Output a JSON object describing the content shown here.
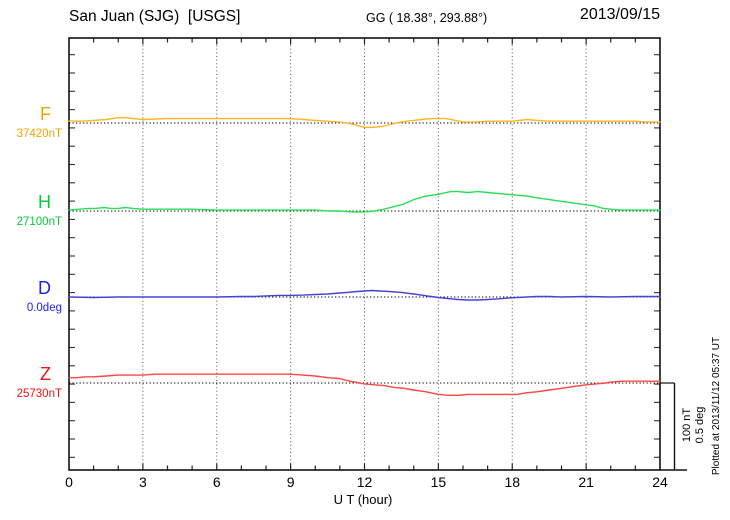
{
  "header": {
    "station": "San Juan (SJG)  [USGS]",
    "coords": "GG ( 18.38°, 293.88°)",
    "date": "2013/09/15"
  },
  "footer": {
    "xlabel": "U T (hour)"
  },
  "scalebar": {
    "line1": "100 nT",
    "line2": "0.5 deg"
  },
  "plotted_note": "Plotted at 2013/11/12 05:37 UT",
  "chart_data": {
    "type": "line",
    "title": "San Juan (SJG) [USGS] magnetogram 2013/09/15",
    "xlabel": "U T (hour)",
    "x_range": [
      0,
      24
    ],
    "x_ticks": [
      "0",
      "3",
      "6",
      "9",
      "12",
      "15",
      "18",
      "21",
      "24"
    ],
    "grid": "dotted vertical lines every 3 hours; dotted horizontal baseline per channel",
    "y_scale_note": "scale bar: 100 nT = 0.5 deg; series y values are deviations from each channel baseline",
    "series": [
      {
        "name": "F",
        "baseline_value": "37420nT",
        "unit": "nT",
        "color": "#F5A300",
        "trace_color": "#FFB61E",
        "x": [
          0,
          0.5,
          1,
          1.5,
          2,
          2.3,
          2.6,
          3,
          4,
          5,
          5.5,
          6,
          7,
          8,
          9,
          9.5,
          10,
          10.5,
          11,
          11.5,
          12,
          12.3,
          12.7,
          13.3,
          13.7,
          14,
          14.3,
          14.7,
          15,
          15.3,
          15.7,
          16,
          16.5,
          17,
          17.5,
          17.8,
          18,
          18.3,
          18.6,
          19,
          19.5,
          20,
          21,
          22,
          23,
          23.5,
          24
        ],
        "y": [
          2,
          2,
          3,
          4,
          6,
          6,
          5,
          4,
          5,
          5,
          5,
          5,
          5,
          5,
          5,
          4,
          3,
          2,
          1,
          -1,
          -5,
          -5,
          -4,
          0,
          2,
          3,
          4,
          5,
          5,
          5,
          3,
          1,
          1,
          2,
          2,
          2,
          2,
          3,
          4,
          3,
          2,
          2,
          2,
          2,
          2,
          1,
          1
        ]
      },
      {
        "name": "H",
        "baseline_value": "27100nT",
        "unit": "nT",
        "color": "#00CC33",
        "trace_color": "#2ADD55",
        "x": [
          0,
          0.4,
          0.8,
          1.1,
          1.4,
          1.7,
          2,
          2.3,
          2.6,
          3,
          3.5,
          4,
          5,
          6,
          7,
          8,
          9,
          10,
          10.5,
          11,
          11.5,
          12,
          12.4,
          12.8,
          13.2,
          13.6,
          14,
          14.5,
          15,
          15.5,
          15.8,
          16.2,
          16.6,
          17,
          17.4,
          17.8,
          18.2,
          18.6,
          19,
          19.5,
          20,
          20.5,
          21,
          21.3,
          21.7,
          22,
          22.4,
          23,
          23.5,
          24
        ],
        "y": [
          1,
          2,
          3,
          3,
          4,
          3,
          3,
          4,
          3,
          2,
          2,
          2,
          2,
          1,
          1,
          1,
          1,
          1,
          0,
          0,
          -1,
          -1,
          0,
          2,
          5,
          8,
          13,
          17,
          19,
          22,
          22,
          21,
          22,
          21,
          20,
          19,
          18,
          17,
          15,
          13,
          11,
          9,
          7,
          6,
          3,
          2,
          1,
          1,
          1,
          1
        ]
      },
      {
        "name": "D",
        "baseline_value": "0.0deg",
        "unit": "deg",
        "color": "#1F1FE8",
        "trace_color": "#4343D8",
        "x": [
          0,
          1,
          2,
          3,
          4,
          5,
          6,
          7,
          7.5,
          8,
          8.5,
          9,
          9.5,
          10,
          10.5,
          11,
          11.3,
          11.7,
          12,
          12.3,
          12.6,
          13,
          13.5,
          14,
          14.4,
          14.7,
          15,
          15.4,
          15.8,
          16.2,
          16.6,
          17,
          17.4,
          17.8,
          18.2,
          18.6,
          19,
          19.5,
          20,
          21,
          22,
          23,
          24
        ],
        "y": [
          0,
          -0.003,
          0,
          0,
          0,
          0,
          0,
          0.003,
          0.003,
          0.006,
          0.009,
          0.009,
          0.011,
          0.014,
          0.017,
          0.023,
          0.026,
          0.031,
          0.034,
          0.037,
          0.034,
          0.031,
          0.026,
          0.017,
          0.009,
          0.003,
          -0.003,
          -0.009,
          -0.014,
          -0.017,
          -0.017,
          -0.014,
          -0.011,
          -0.006,
          -0.003,
          0,
          0.003,
          0.003,
          0,
          0.003,
          0,
          0.003,
          0.003
        ]
      },
      {
        "name": "Z",
        "baseline_value": "25730nT",
        "unit": "nT",
        "color": "#EF1212",
        "trace_color": "#FF4545",
        "x": [
          0,
          0.3,
          0.7,
          1,
          1.5,
          2,
          2.5,
          3,
          3.5,
          4,
          4.4,
          4.8,
          5.2,
          6,
          7,
          8,
          8.5,
          9,
          9.5,
          10,
          10.5,
          11,
          11.4,
          11.8,
          12,
          12.4,
          12.8,
          13.2,
          13.6,
          14,
          14.5,
          15,
          15.4,
          15.8,
          16.2,
          16.6,
          17,
          17.4,
          17.8,
          18.2,
          18.6,
          19,
          19.5,
          20,
          20.5,
          21,
          21.4,
          21.8,
          22,
          22.5,
          23,
          23.4,
          23.7,
          24
        ],
        "y": [
          6,
          6,
          7,
          7,
          8,
          9,
          9,
          9,
          10,
          10,
          10,
          10,
          10,
          10,
          10,
          10,
          10,
          10,
          9,
          8,
          6,
          5,
          2,
          0,
          -1,
          -2,
          -3,
          -5,
          -6,
          -8,
          -10,
          -13,
          -14,
          -14,
          -13,
          -13,
          -13,
          -13,
          -13,
          -13,
          -11,
          -10,
          -8,
          -6,
          -4,
          -2,
          -1,
          0,
          1,
          2,
          2,
          2,
          2,
          2
        ]
      }
    ]
  }
}
